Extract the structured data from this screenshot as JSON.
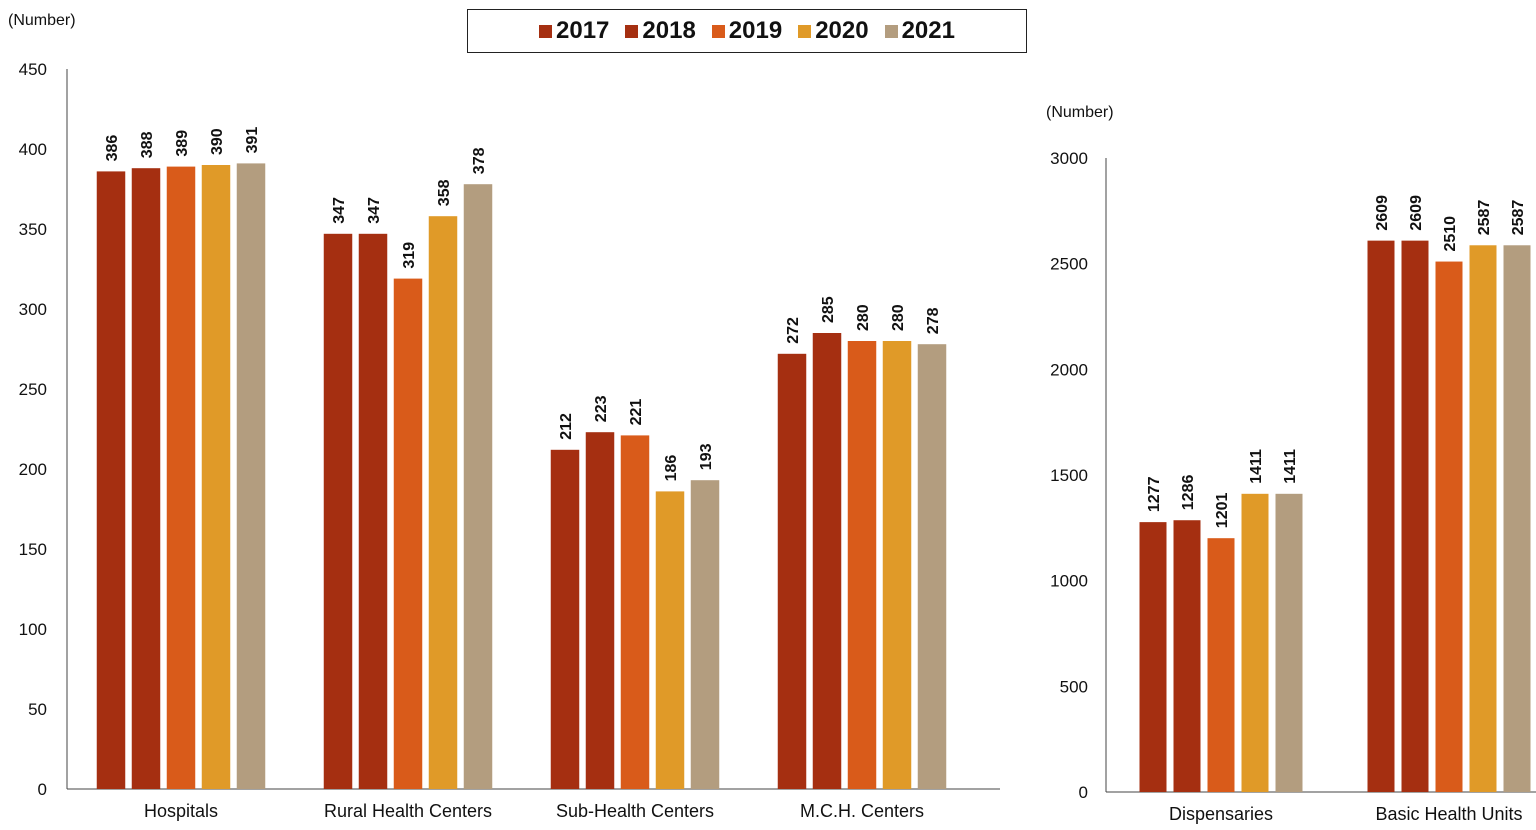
{
  "legend": {
    "items": [
      {
        "label": "2017",
        "color": "#A52F11"
      },
      {
        "label": "2018",
        "color": "#A52F11"
      },
      {
        "label": "2019",
        "color": "#D95B1A"
      },
      {
        "label": "2020",
        "color": "#E09A28"
      },
      {
        "label": "2021",
        "color": "#B39D7F"
      }
    ]
  },
  "chart_data": [
    {
      "type": "bar",
      "unit_label": "(Number)",
      "categories": [
        "Hospitals",
        "Rural Health Centers",
        "Sub-Health Centers",
        "M.C.H. Centers"
      ],
      "series": [
        {
          "name": "2017",
          "values": [
            386,
            347,
            212,
            272
          ]
        },
        {
          "name": "2018",
          "values": [
            388,
            347,
            223,
            285
          ]
        },
        {
          "name": "2019",
          "values": [
            389,
            319,
            221,
            280
          ]
        },
        {
          "name": "2020",
          "values": [
            390,
            358,
            186,
            280
          ]
        },
        {
          "name": "2021",
          "values": [
            391,
            378,
            193,
            278
          ]
        }
      ],
      "ylim": [
        0,
        450
      ],
      "yticks": [
        0,
        50,
        100,
        150,
        200,
        250,
        300,
        350,
        400,
        450
      ],
      "grid": false,
      "legend_position": "top-center"
    },
    {
      "type": "bar",
      "unit_label": "(Number)",
      "categories": [
        "Dispensaries",
        "Basic Health Units"
      ],
      "series": [
        {
          "name": "2017",
          "values": [
            1277,
            2609
          ]
        },
        {
          "name": "2018",
          "values": [
            1286,
            2609
          ]
        },
        {
          "name": "2019",
          "values": [
            1201,
            2510
          ]
        },
        {
          "name": "2020",
          "values": [
            1411,
            2587
          ]
        },
        {
          "name": "2021",
          "values": [
            1411,
            2587
          ]
        }
      ],
      "ylim": [
        0,
        3000
      ],
      "yticks": [
        0,
        500,
        1000,
        1500,
        2000,
        2500,
        3000
      ],
      "grid": false
    }
  ]
}
